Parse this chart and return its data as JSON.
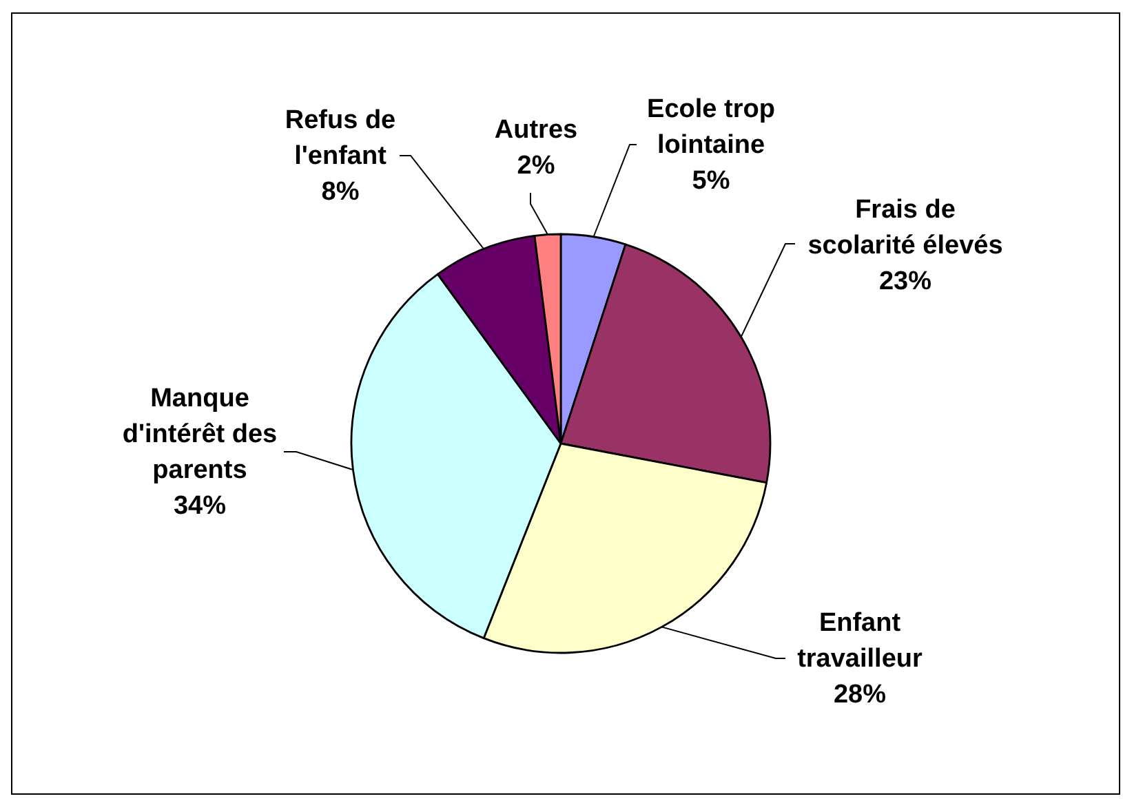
{
  "chart_data": {
    "type": "pie",
    "categories": [
      "Ecole trop lointaine",
      "Frais de scolarité élevés",
      "Enfant travailleur",
      "Manque d'intérêt des parents",
      "Refus de l'enfant",
      "Autres"
    ],
    "values": [
      5,
      23,
      28,
      34,
      8,
      2
    ],
    "colors": [
      "#9999ff",
      "#993366",
      "#ffffcc",
      "#ccffff",
      "#660066",
      "#ff8080"
    ],
    "value_labels": [
      "5%",
      "23%",
      "28%",
      "34%",
      "8%",
      "2%"
    ]
  }
}
